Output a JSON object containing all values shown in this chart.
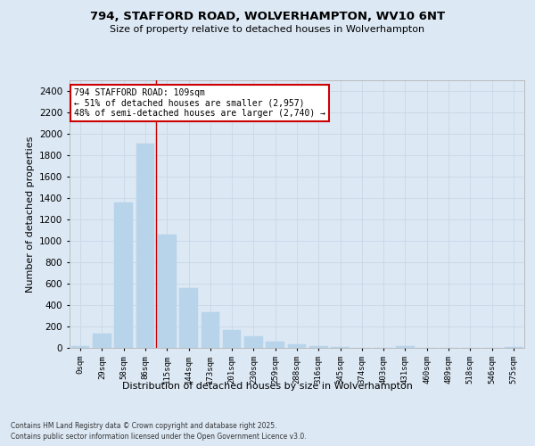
{
  "title": "794, STAFFORD ROAD, WOLVERHAMPTON, WV10 6NT",
  "subtitle": "Size of property relative to detached houses in Wolverhampton",
  "xlabel": "Distribution of detached houses by size in Wolverhampton",
  "ylabel": "Number of detached properties",
  "footnote1": "Contains HM Land Registry data © Crown copyright and database right 2025.",
  "footnote2": "Contains public sector information licensed under the Open Government Licence v3.0.",
  "bar_color": "#b8d4ea",
  "bar_edgecolor": "#b8d4ea",
  "grid_color": "#c8d8e8",
  "bg_color": "#dce8f4",
  "vline_color": "#cc0000",
  "vline_x": 3.5,
  "annotation_title": "794 STAFFORD ROAD: 109sqm",
  "annotation_line1": "← 51% of detached houses are smaller (2,957)",
  "annotation_line2": "48% of semi-detached houses are larger (2,740) →",
  "annotation_box_edgecolor": "#cc0000",
  "categories": [
    "0sqm",
    "29sqm",
    "58sqm",
    "86sqm",
    "115sqm",
    "144sqm",
    "173sqm",
    "201sqm",
    "230sqm",
    "259sqm",
    "288sqm",
    "316sqm",
    "345sqm",
    "374sqm",
    "403sqm",
    "431sqm",
    "460sqm",
    "489sqm",
    "518sqm",
    "546sqm",
    "575sqm"
  ],
  "values": [
    15,
    130,
    1360,
    1910,
    1060,
    560,
    335,
    170,
    110,
    60,
    30,
    20,
    5,
    0,
    0,
    15,
    0,
    0,
    0,
    0,
    10
  ],
  "ylim": [
    0,
    2500
  ],
  "yticks": [
    0,
    200,
    400,
    600,
    800,
    1000,
    1200,
    1400,
    1600,
    1800,
    2000,
    2200,
    2400
  ]
}
